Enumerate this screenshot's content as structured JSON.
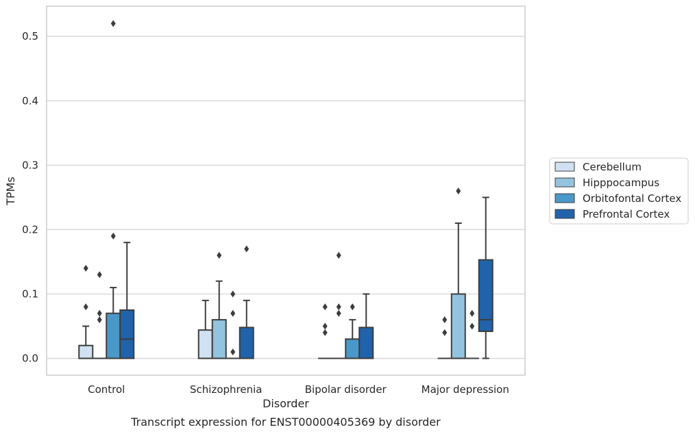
{
  "chart_data": {
    "type": "box",
    "caption": "Transcript expression for ENST00000405369 by disorder",
    "xlabel": "Disorder",
    "ylabel": "TPMs",
    "ylim": [
      -0.026,
      0.547
    ],
    "yticks": [
      0.0,
      0.1,
      0.2,
      0.3,
      0.4,
      0.5
    ],
    "ytick_labels": [
      "0.0",
      "0.1",
      "0.2",
      "0.3",
      "0.4",
      "0.5"
    ],
    "grid": "horizontal",
    "legend_position": "right",
    "categories": [
      "Control",
      "Schizophrenia",
      "Bipolar disorder",
      "Major depression"
    ],
    "series": [
      {
        "name": "Cerebellum",
        "color": "#cfe1f2",
        "boxes": [
          {
            "q1": 0.0,
            "median": 0.0,
            "q3": 0.02,
            "whisker_low": 0.0,
            "whisker_high": 0.05,
            "outliers": [
              0.08,
              0.14
            ]
          },
          {
            "q1": 0.0,
            "median": 0.0,
            "q3": 0.044,
            "whisker_low": 0.0,
            "whisker_high": 0.09,
            "outliers": []
          },
          {
            "q1": 0.0,
            "median": 0.0,
            "q3": 0.0,
            "whisker_low": 0.0,
            "whisker_high": 0.0,
            "outliers": [
              0.04,
              0.05,
              0.08
            ]
          },
          {
            "q1": 0.0,
            "median": 0.0,
            "q3": 0.0,
            "whisker_low": 0.0,
            "whisker_high": 0.0,
            "outliers": [
              0.04,
              0.06
            ]
          }
        ]
      },
      {
        "name": "Hipppocampus",
        "color": "#93c3df",
        "boxes": [
          {
            "q1": 0.0,
            "median": 0.0,
            "q3": 0.0,
            "whisker_low": 0.0,
            "whisker_high": 0.0,
            "outliers": [
              0.06,
              0.07,
              0.13
            ]
          },
          {
            "q1": 0.0,
            "median": 0.0,
            "q3": 0.06,
            "whisker_low": 0.0,
            "whisker_high": 0.12,
            "outliers": [
              0.16
            ]
          },
          {
            "q1": 0.0,
            "median": 0.0,
            "q3": 0.0,
            "whisker_low": 0.0,
            "whisker_high": 0.0,
            "outliers": [
              0.07,
              0.08,
              0.16
            ]
          },
          {
            "q1": 0.0,
            "median": 0.0,
            "q3": 0.1,
            "whisker_low": 0.0,
            "whisker_high": 0.21,
            "outliers": [
              0.26
            ]
          }
        ]
      },
      {
        "name": "Orbitofontal Cortex",
        "color": "#4a98c9",
        "boxes": [
          {
            "q1": 0.0,
            "median": 0.0,
            "q3": 0.07,
            "whisker_low": 0.0,
            "whisker_high": 0.11,
            "outliers": [
              0.19,
              0.52
            ]
          },
          {
            "q1": 0.0,
            "median": 0.0,
            "q3": 0.0,
            "whisker_low": 0.0,
            "whisker_high": 0.0,
            "outliers": [
              0.01,
              0.07,
              0.1
            ]
          },
          {
            "q1": 0.0,
            "median": 0.0,
            "q3": 0.03,
            "whisker_low": 0.0,
            "whisker_high": 0.06,
            "outliers": [
              0.08
            ]
          },
          {
            "q1": 0.0,
            "median": 0.0,
            "q3": 0.0,
            "whisker_low": 0.0,
            "whisker_high": 0.0,
            "outliers": [
              0.05,
              0.07
            ]
          }
        ]
      },
      {
        "name": "Prefrontal Cortex",
        "color": "#2163aa",
        "boxes": [
          {
            "q1": 0.0,
            "median": 0.03,
            "q3": 0.075,
            "whisker_low": 0.0,
            "whisker_high": 0.18,
            "outliers": []
          },
          {
            "q1": 0.0,
            "median": 0.0,
            "q3": 0.048,
            "whisker_low": 0.0,
            "whisker_high": 0.09,
            "outliers": [
              0.17
            ]
          },
          {
            "q1": 0.0,
            "median": 0.0,
            "q3": 0.048,
            "whisker_low": 0.0,
            "whisker_high": 0.1,
            "outliers": []
          },
          {
            "q1": 0.042,
            "median": 0.06,
            "q3": 0.153,
            "whisker_low": 0.0,
            "whisker_high": 0.25,
            "outliers": []
          }
        ]
      }
    ]
  }
}
